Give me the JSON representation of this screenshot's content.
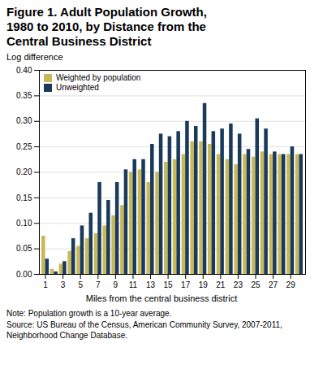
{
  "chart_data": {
    "type": "bar",
    "title": "Figure 1. Adult Population Growth,\n1980 to 2010, by Distance from the\nCentral Business District",
    "ylabel": "Log difference",
    "xlabel": "Miles from the central business district",
    "note": "Note: Population growth is a 10-year average.\nSource: US Bureau of the Census, American Community Survey, 2007-2011,\nNeighborhood Change Database.",
    "x": [
      1,
      2,
      3,
      4,
      5,
      6,
      7,
      8,
      9,
      10,
      11,
      12,
      13,
      14,
      15,
      16,
      17,
      18,
      19,
      20,
      21,
      22,
      23,
      24,
      25,
      26,
      27,
      28,
      29,
      30
    ],
    "xlim": [
      0.3,
      30.7
    ],
    "xticks": [
      1,
      3,
      5,
      7,
      9,
      11,
      13,
      15,
      17,
      19,
      21,
      23,
      25,
      27,
      29
    ],
    "ylim": [
      0.0,
      0.4
    ],
    "yticks": [
      {
        "value": 0.0,
        "label": "0.00"
      },
      {
        "value": 0.05,
        "label": "0.05"
      },
      {
        "value": 0.1,
        "label": "0.10"
      },
      {
        "value": 0.15,
        "label": "0.15"
      },
      {
        "value": 0.2,
        "label": "0.20"
      },
      {
        "value": 0.25,
        "label": "0.25"
      },
      {
        "value": 0.3,
        "label": "0.30"
      },
      {
        "value": 0.35,
        "label": "0.35"
      },
      {
        "value": 0.4,
        "label": "0.40"
      }
    ],
    "grid": true,
    "legend": "upper left",
    "series": [
      {
        "name": "Weighted by population",
        "color": "#c8b85a",
        "values": [
          0.075,
          0.01,
          0.02,
          0.045,
          0.055,
          0.07,
          0.08,
          0.095,
          0.115,
          0.135,
          0.2,
          0.205,
          0.18,
          0.2,
          0.22,
          0.225,
          0.235,
          0.26,
          0.26,
          0.255,
          0.235,
          0.225,
          0.215,
          0.235,
          0.23,
          0.24,
          0.235,
          0.235,
          0.235,
          0.235
        ]
      },
      {
        "name": "Unweighted",
        "color": "#1a3a5c",
        "values": [
          0.03,
          0.005,
          0.025,
          0.07,
          0.095,
          0.12,
          0.18,
          0.145,
          0.18,
          0.205,
          0.225,
          0.225,
          0.255,
          0.275,
          0.27,
          0.28,
          0.3,
          0.29,
          0.335,
          0.28,
          0.285,
          0.295,
          0.275,
          0.245,
          0.305,
          0.285,
          0.24,
          0.235,
          0.25,
          0.235
        ]
      }
    ]
  }
}
